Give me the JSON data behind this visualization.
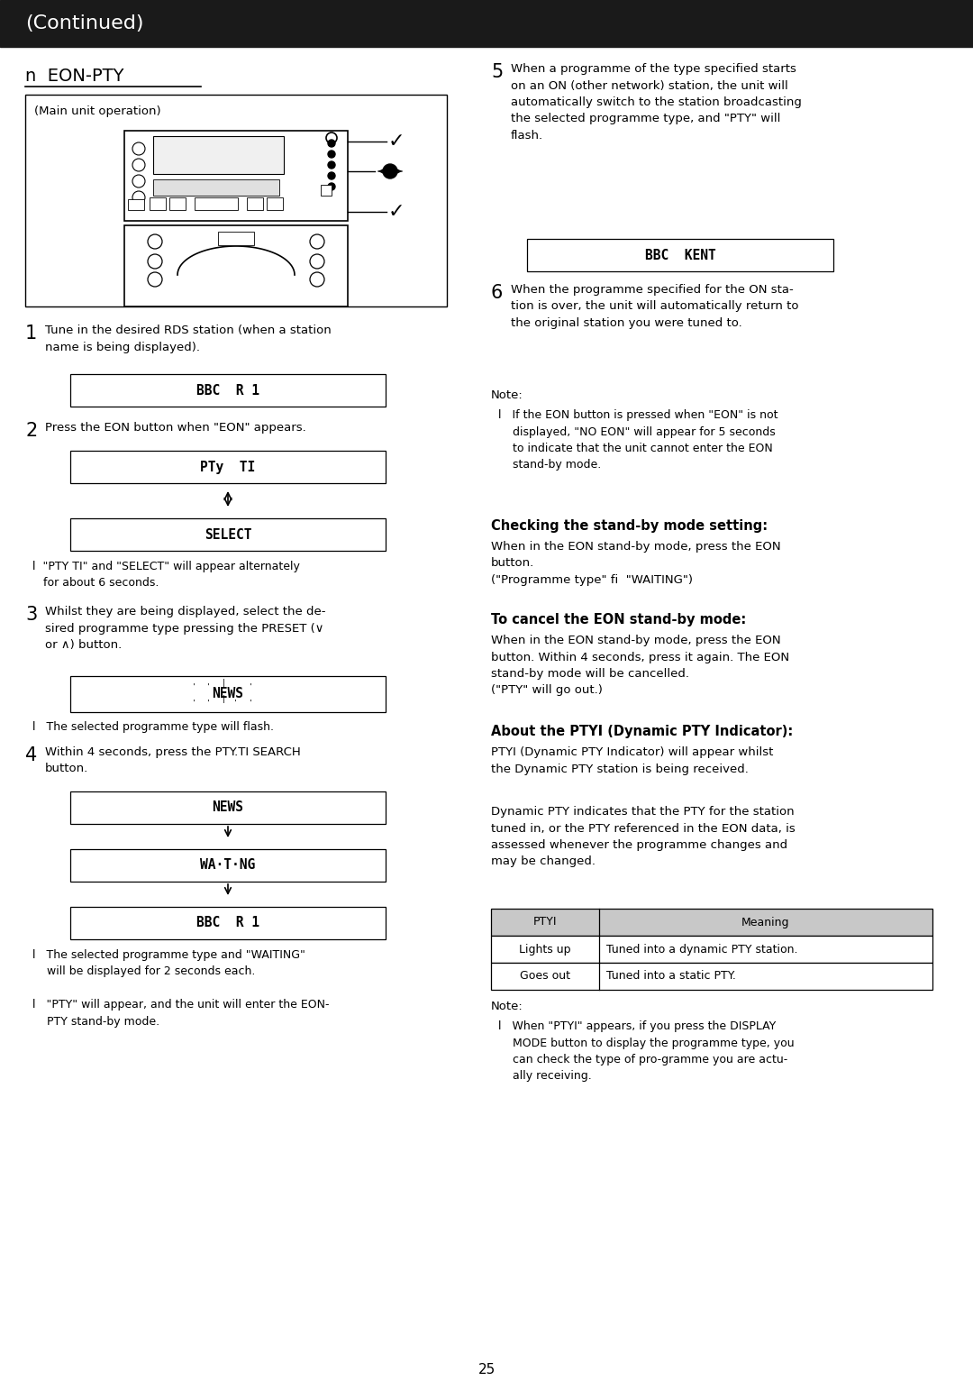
{
  "bg_color": "#ffffff",
  "header_bg": "#1a1a1a",
  "header_text": "(Continued)",
  "header_text_color": "#ffffff",
  "section_title": "n  EON-PTY",
  "page_number": "25",
  "display_bbc_r1": "BBC  R 1",
  "display_pty_ti": "PTy  TI",
  "display_select": "SELECT",
  "display_news": "NEWS",
  "display_waiting": "WA·T·NG",
  "display_bbc_r1b": "BBC  R 1",
  "display_bbc_kent": "BBC  KENT",
  "main_unit_label": "(Main unit operation)"
}
